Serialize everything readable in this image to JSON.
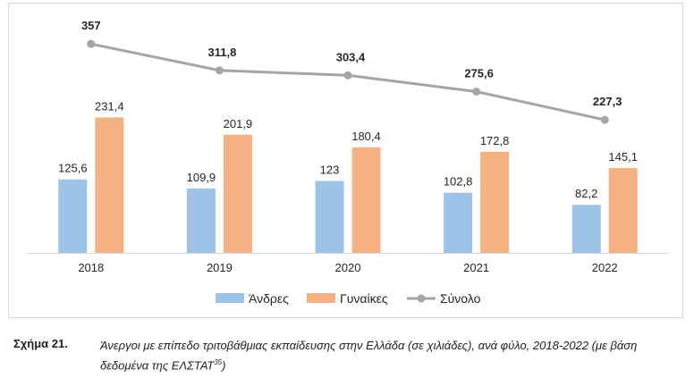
{
  "chart_data": {
    "type": "bar",
    "categories": [
      "2018",
      "2019",
      "2020",
      "2021",
      "2022"
    ],
    "series": [
      {
        "name": "Άνδρες",
        "kind": "bar",
        "values": [
          125.6,
          109.9,
          123,
          102.8,
          82.2
        ],
        "labels": [
          "125,6",
          "109,9",
          "123",
          "102,8",
          "82,2"
        ],
        "color": "#9dc3e6"
      },
      {
        "name": "Γυναίκες",
        "kind": "bar",
        "values": [
          231.4,
          201.9,
          180.4,
          172.8,
          145.1
        ],
        "labels": [
          "231,4",
          "201,9",
          "180,4",
          "172,8",
          "145,1"
        ],
        "color": "#f4b183"
      },
      {
        "name": "Σύνολο",
        "kind": "line",
        "values": [
          357,
          311.8,
          303.4,
          275.6,
          227.3
        ],
        "labels": [
          "357",
          "311,8",
          "303,4",
          "275,6",
          "227,3"
        ],
        "color": "#a5a5a5"
      }
    ],
    "ylim": [
      0,
      370
    ],
    "grid": false,
    "legend": "bottom"
  },
  "caption": {
    "number": "Σχήμα 21.",
    "text": "Άνεργοι με επίπεδο τριτοβάθμιας εκπαίδευσης στην Ελλάδα (σε χιλιάδες), ανά φύλο, 2018-2022 (με βάση δεδομένα της ΕΛΣΤΑΤ",
    "footnote": "35",
    "text_end": ")"
  }
}
